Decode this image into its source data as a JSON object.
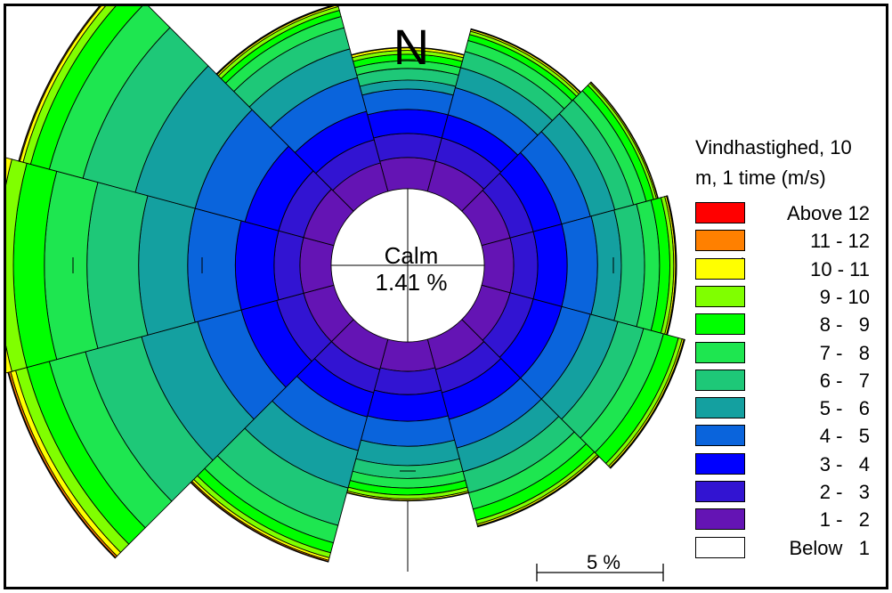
{
  "north_label": "N",
  "calm": {
    "label": "Calm",
    "value": "1.41 %"
  },
  "scale_label": "5 %",
  "legend": {
    "title": "Vindhastighed, 10 m, 1 time (m/s)",
    "title_lines": [
      "Vindhastighed, 10",
      "m, 1 time (m/s)"
    ],
    "items": [
      {
        "label": "Above 12",
        "color": "#ff0000"
      },
      {
        "label": "11 - 12",
        "color": "#ff8000"
      },
      {
        "label": "10 - 11",
        "color": "#ffff00"
      },
      {
        "label": "9 - 10",
        "color": "#80ff00"
      },
      {
        "label": "8 -   9",
        "color": "#00ff00"
      },
      {
        "label": "7 -   8",
        "color": "#1ee650"
      },
      {
        "label": "6 -   7",
        "color": "#1ec878"
      },
      {
        "label": "5 -   6",
        "color": "#14a0a0"
      },
      {
        "label": "4 -   5",
        "color": "#0a64dc"
      },
      {
        "label": "3 -   4",
        "color": "#0000ff"
      },
      {
        "label": "2 -   3",
        "color": "#3214d2"
      },
      {
        "label": "1 -   2",
        "color": "#6414b4"
      },
      {
        "label": "Below   1",
        "color": "#ffffff"
      }
    ]
  },
  "chart_data": {
    "type": "wind_rose",
    "directions_deg": [
      0,
      30,
      60,
      90,
      120,
      150,
      180,
      210,
      240,
      270,
      300,
      330
    ],
    "bins": [
      "1 - 2",
      "2 - 3",
      "3 - 4",
      "4 - 5",
      "5 - 6",
      "6 - 7",
      "7 - 8",
      "8 - 9",
      "9 - 10",
      "10 - 11",
      "11 - 12",
      "Above 12"
    ],
    "unit": "%",
    "calm_percent": 1.41,
    "scale_reference_percent": 5,
    "cumulative_percent": [
      [
        1.21,
        2.14,
        3.07,
        3.86,
        4.21,
        4.66,
        4.96,
        5.21,
        5.36,
        5.46,
        5.48,
        5.48
      ],
      [
        1.21,
        2.14,
        3.07,
        4.16,
        4.96,
        5.61,
        6.05,
        6.29,
        6.42,
        6.49,
        6.51,
        6.52
      ],
      [
        1.14,
        2.07,
        3.21,
        4.36,
        5.34,
        6.09,
        6.6,
        6.9,
        7.01,
        7.06,
        7.08,
        7.08
      ],
      [
        1.14,
        2.07,
        3.21,
        4.39,
        5.31,
        6.21,
        6.79,
        7.19,
        7.34,
        7.41,
        7.44,
        7.45
      ],
      [
        1.14,
        2.07,
        3.21,
        4.36,
        5.46,
        6.49,
        7.29,
        7.89,
        8.04,
        8.11,
        8.14,
        8.15
      ],
      [
        1.21,
        2.14,
        3.21,
        4.36,
        5.31,
        6.16,
        6.81,
        7.26,
        7.41,
        7.48,
        7.51,
        7.52
      ],
      [
        1.14,
        2.04,
        3.07,
        4.04,
        4.79,
        5.29,
        5.66,
        5.93,
        6.08,
        6.14,
        6.15,
        6.16
      ],
      [
        1.21,
        2.14,
        3.11,
        4.46,
        5.96,
        7.46,
        8.16,
        8.56,
        8.76,
        8.86,
        8.91,
        8.93
      ],
      [
        1.21,
        2.29,
        3.71,
        5.46,
        7.71,
        9.96,
        11.41,
        12.31,
        12.76,
        12.96,
        13.04,
        13.07
      ],
      [
        1.21,
        2.21,
        3.71,
        5.56,
        7.46,
        9.46,
        11.11,
        12.31,
        12.91,
        13.16,
        13.24,
        13.26
      ],
      [
        1.21,
        2.21,
        3.56,
        5.56,
        7.96,
        10.06,
        11.41,
        12.16,
        12.46,
        12.59,
        12.63,
        12.64
      ],
      [
        1.14,
        2.07,
        3.21,
        4.56,
        5.71,
        6.56,
        7.01,
        7.26,
        7.41,
        7.48,
        7.51,
        7.52
      ]
    ],
    "sector_width_deg": 30,
    "title": "N"
  }
}
